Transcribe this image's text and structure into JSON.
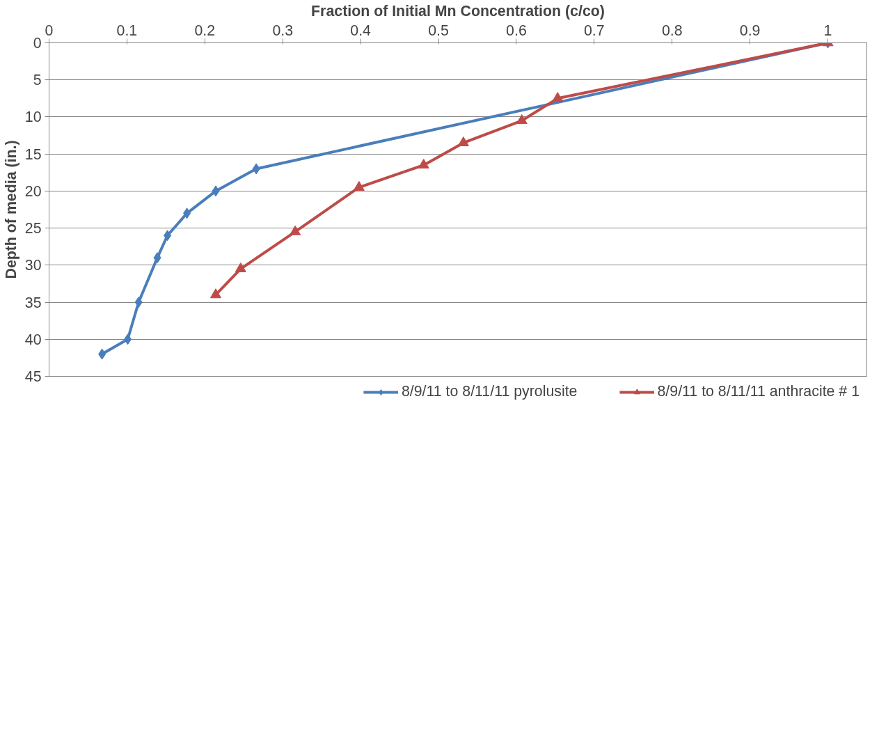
{
  "chart_data": {
    "type": "line",
    "xlabel": "Fraction of Initial Mn Concentration (c/co)",
    "ylabel": "Depth of media (in.)",
    "xlim": [
      0,
      1.05
    ],
    "xticks": [
      0,
      0.1,
      0.2,
      0.3,
      0.4,
      0.5,
      0.6,
      0.7,
      0.8,
      0.9,
      1
    ],
    "ylim": [
      45,
      0
    ],
    "yticks": [
      0,
      5,
      10,
      15,
      20,
      25,
      30,
      35,
      40,
      45
    ],
    "grid": "y",
    "legend": "bottom",
    "series": [
      {
        "name": "8/9/11 to 8/11/11 pyrolusite",
        "color": "#4a7ebb",
        "marker": "diamond",
        "x": [
          1.0,
          0.266,
          0.214,
          0.177,
          0.152,
          0.139,
          0.115,
          0.101,
          0.068
        ],
        "values": [
          0,
          17,
          20,
          23,
          26,
          29,
          35,
          40,
          42
        ]
      },
      {
        "name": "8/9/11 to 8/11/11 anthracite # 1",
        "color": "#be4b48",
        "marker": "triangle",
        "x": [
          1.0,
          0.653,
          0.607,
          0.532,
          0.481,
          0.398,
          0.316,
          0.246,
          0.214
        ],
        "values": [
          0,
          7.5,
          10.5,
          13.5,
          16.5,
          19.5,
          25.5,
          30.5,
          34
        ]
      }
    ]
  }
}
